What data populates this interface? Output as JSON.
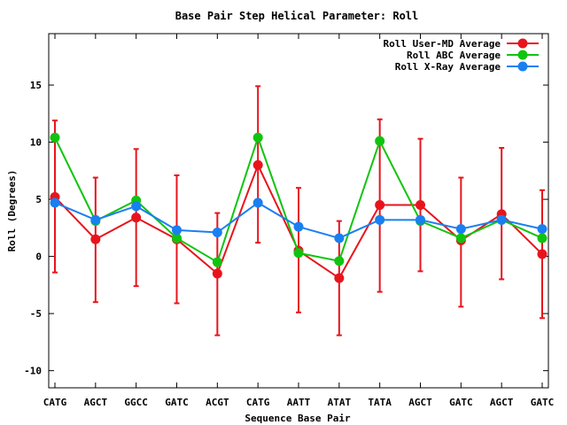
{
  "chart_data": {
    "type": "line",
    "title": "Base Pair Step Helical Parameter: Roll",
    "xlabel": "Sequence Base Pair",
    "ylabel": "Roll (Degrees)",
    "categories": [
      "CATG",
      "AGCT",
      "GGCC",
      "GATC",
      "ACGT",
      "CATG",
      "AATT",
      "ATAT",
      "TATA",
      "AGCT",
      "GATC",
      "AGCT",
      "GATC"
    ],
    "ylim": [
      -11.5,
      19.5
    ],
    "yticks": [
      -10,
      -5,
      0,
      5,
      10,
      15
    ],
    "grid": false,
    "legend_position": "top-right",
    "series": [
      {
        "name": "Roll User-MD Average",
        "color": "#e8141c",
        "values": [
          5.2,
          1.5,
          3.4,
          1.5,
          -1.5,
          8.0,
          0.5,
          -1.9,
          4.5,
          4.5,
          1.4,
          3.7,
          0.2
        ],
        "error_low": [
          -1.4,
          -4.0,
          -2.6,
          -4.1,
          -6.9,
          1.2,
          -4.9,
          -6.9,
          -3.1,
          -1.3,
          -4.4,
          -2.0,
          -5.4
        ],
        "error_high": [
          11.9,
          6.9,
          9.4,
          7.1,
          3.8,
          14.9,
          6.0,
          3.1,
          12.0,
          10.3,
          6.9,
          9.5,
          5.8
        ]
      },
      {
        "name": "Roll ABC Average",
        "color": "#0fc40f",
        "values": [
          10.4,
          3.1,
          4.9,
          1.6,
          -0.5,
          10.4,
          0.3,
          -0.4,
          10.1,
          3.1,
          1.6,
          3.2,
          1.6
        ]
      },
      {
        "name": "Roll X-Ray Average",
        "color": "#1a7ff0",
        "values": [
          4.7,
          3.2,
          4.4,
          2.3,
          2.1,
          4.7,
          2.6,
          1.6,
          3.2,
          3.2,
          2.4,
          3.2,
          2.4
        ]
      }
    ]
  }
}
